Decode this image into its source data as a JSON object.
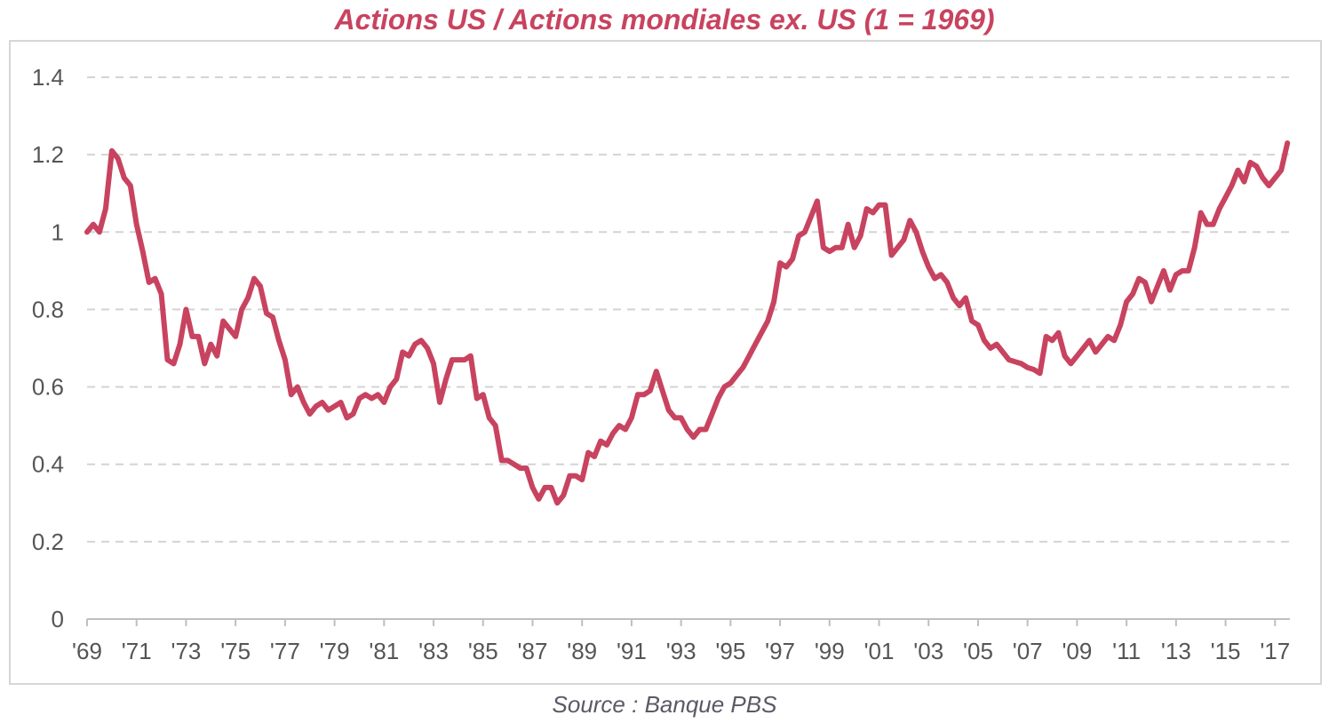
{
  "chart_data": {
    "type": "line",
    "title": "Actions US / Actions mondiales ex. US (1 = 1969)",
    "source": "Source : Banque PBS",
    "xlabel": "",
    "ylabel": "",
    "ylim": [
      0,
      1.4
    ],
    "yticks": [
      "0",
      "0.2",
      "0.4",
      "0.6",
      "0.8",
      "1",
      "1.2",
      "1.4"
    ],
    "xlim": [
      1969,
      2017.6
    ],
    "xticks": [
      {
        "x": 1969,
        "label": "'69"
      },
      {
        "x": 1971,
        "label": "'71"
      },
      {
        "x": 1973,
        "label": "'73"
      },
      {
        "x": 1975,
        "label": "'75"
      },
      {
        "x": 1977,
        "label": "'77"
      },
      {
        "x": 1979,
        "label": "'79"
      },
      {
        "x": 1981,
        "label": "'81"
      },
      {
        "x": 1983,
        "label": "'83"
      },
      {
        "x": 1985,
        "label": "'85"
      },
      {
        "x": 1987,
        "label": "'87"
      },
      {
        "x": 1989,
        "label": "'89"
      },
      {
        "x": 1991,
        "label": "'91"
      },
      {
        "x": 1993,
        "label": "'93"
      },
      {
        "x": 1995,
        "label": "'95"
      },
      {
        "x": 1997,
        "label": "'97"
      },
      {
        "x": 1999,
        "label": "'99"
      },
      {
        "x": 2001,
        "label": "'01"
      },
      {
        "x": 2003,
        "label": "'03"
      },
      {
        "x": 2005,
        "label": "'05"
      },
      {
        "x": 2007,
        "label": "'07"
      },
      {
        "x": 2009,
        "label": "'09"
      },
      {
        "x": 2011,
        "label": "'11"
      },
      {
        "x": 2013,
        "label": "'13"
      },
      {
        "x": 2015,
        "label": "'15"
      },
      {
        "x": 2017,
        "label": "'17"
      }
    ],
    "grid": "horizontal-dashed",
    "line_color": "#c8435f",
    "series": [
      {
        "x": [
          1969.0,
          1969.25,
          1969.5,
          1969.75,
          1970.0,
          1970.25,
          1970.5,
          1970.75,
          1971.0,
          1971.25,
          1971.5,
          1971.75,
          1972.0,
          1972.25,
          1972.5,
          1972.75,
          1973.0,
          1973.25,
          1973.5,
          1973.75,
          1974.0,
          1974.25,
          1974.5,
          1974.75,
          1975.0,
          1975.25,
          1975.5,
          1975.75,
          1976.0,
          1976.25,
          1976.5,
          1976.75,
          1977.0,
          1977.25,
          1977.5,
          1977.75,
          1978.0,
          1978.25,
          1978.5,
          1978.75,
          1979.0,
          1979.25,
          1979.5,
          1979.75,
          1980.0,
          1980.25,
          1980.5,
          1980.75,
          1981.0,
          1981.25,
          1981.5,
          1981.75,
          1982.0,
          1982.25,
          1982.5,
          1982.75,
          1983.0,
          1983.25,
          1983.5,
          1983.75,
          1984.0,
          1984.25,
          1984.5,
          1984.75,
          1985.0,
          1985.25,
          1985.5,
          1985.75,
          1986.0,
          1986.25,
          1986.5,
          1986.75,
          1987.0,
          1987.25,
          1987.5,
          1987.75,
          1988.0,
          1988.25,
          1988.5,
          1988.75,
          1989.0,
          1989.25,
          1989.5,
          1989.75,
          1990.0,
          1990.25,
          1990.5,
          1990.75,
          1991.0,
          1991.25,
          1991.5,
          1991.75,
          1992.0,
          1992.25,
          1992.5,
          1992.75,
          1993.0,
          1993.25,
          1993.5,
          1993.75,
          1994.0,
          1994.25,
          1994.5,
          1994.75,
          1995.0,
          1995.25,
          1995.5,
          1995.75,
          1996.0,
          1996.25,
          1996.5,
          1996.75,
          1997.0,
          1997.25,
          1997.5,
          1997.75,
          1998.0,
          1998.25,
          1998.5,
          1998.75,
          1999.0,
          1999.25,
          1999.5,
          1999.75,
          2000.0,
          2000.25,
          2000.5,
          2000.75,
          2001.0,
          2001.25,
          2001.5,
          2001.75,
          2002.0,
          2002.25,
          2002.5,
          2002.75,
          2003.0,
          2003.25,
          2003.5,
          2003.75,
          2004.0,
          2004.25,
          2004.5,
          2004.75,
          2005.0,
          2005.25,
          2005.5,
          2005.75,
          2006.0,
          2006.25,
          2006.5,
          2006.75,
          2007.0,
          2007.25,
          2007.5,
          2007.75,
          2008.0,
          2008.25,
          2008.5,
          2008.75,
          2009.0,
          2009.25,
          2009.5,
          2009.75,
          2010.0,
          2010.25,
          2010.5,
          2010.75,
          2011.0,
          2011.25,
          2011.5,
          2011.75,
          2012.0,
          2012.25,
          2012.5,
          2012.75,
          2013.0,
          2013.25,
          2013.5,
          2013.75,
          2014.0,
          2014.25,
          2014.5,
          2014.75,
          2015.0,
          2015.25,
          2015.5,
          2015.75,
          2016.0,
          2016.25,
          2016.5,
          2016.75,
          2017.0,
          2017.25,
          2017.5
        ],
        "values": [
          1.0,
          1.02,
          1.0,
          1.06,
          1.21,
          1.19,
          1.14,
          1.12,
          1.02,
          0.95,
          0.87,
          0.88,
          0.84,
          0.67,
          0.66,
          0.71,
          0.8,
          0.73,
          0.73,
          0.66,
          0.71,
          0.68,
          0.77,
          0.75,
          0.73,
          0.8,
          0.83,
          0.88,
          0.86,
          0.79,
          0.78,
          0.72,
          0.67,
          0.58,
          0.6,
          0.56,
          0.53,
          0.55,
          0.56,
          0.54,
          0.55,
          0.56,
          0.52,
          0.53,
          0.57,
          0.58,
          0.57,
          0.58,
          0.56,
          0.6,
          0.62,
          0.69,
          0.68,
          0.71,
          0.72,
          0.7,
          0.66,
          0.56,
          0.62,
          0.67,
          0.67,
          0.67,
          0.68,
          0.57,
          0.58,
          0.52,
          0.5,
          0.41,
          0.41,
          0.4,
          0.39,
          0.39,
          0.34,
          0.31,
          0.34,
          0.34,
          0.3,
          0.32,
          0.37,
          0.37,
          0.36,
          0.43,
          0.42,
          0.46,
          0.45,
          0.48,
          0.5,
          0.49,
          0.52,
          0.58,
          0.58,
          0.59,
          0.64,
          0.59,
          0.54,
          0.52,
          0.52,
          0.49,
          0.47,
          0.49,
          0.49,
          0.53,
          0.57,
          0.6,
          0.61,
          0.63,
          0.65,
          0.68,
          0.71,
          0.74,
          0.77,
          0.82,
          0.92,
          0.91,
          0.93,
          0.99,
          1.0,
          1.04,
          1.08,
          0.96,
          0.95,
          0.96,
          0.96,
          1.02,
          0.96,
          0.99,
          1.06,
          1.05,
          1.07,
          1.07,
          0.94,
          0.96,
          0.98,
          1.03,
          1.0,
          0.95,
          0.91,
          0.88,
          0.89,
          0.87,
          0.83,
          0.81,
          0.83,
          0.77,
          0.76,
          0.72,
          0.7,
          0.71,
          0.69,
          0.67,
          0.665,
          0.66,
          0.65,
          0.645,
          0.635,
          0.73,
          0.72,
          0.74,
          0.68,
          0.66,
          0.68,
          0.7,
          0.72,
          0.69,
          0.71,
          0.73,
          0.72,
          0.76,
          0.82,
          0.84,
          0.88,
          0.87,
          0.82,
          0.86,
          0.9,
          0.85,
          0.89,
          0.9,
          0.9,
          0.96,
          1.05,
          1.02,
          1.02,
          1.06,
          1.09,
          1.12,
          1.16,
          1.13,
          1.18,
          1.17,
          1.14,
          1.12,
          1.14,
          1.16,
          1.23
        ]
      }
    ]
  }
}
